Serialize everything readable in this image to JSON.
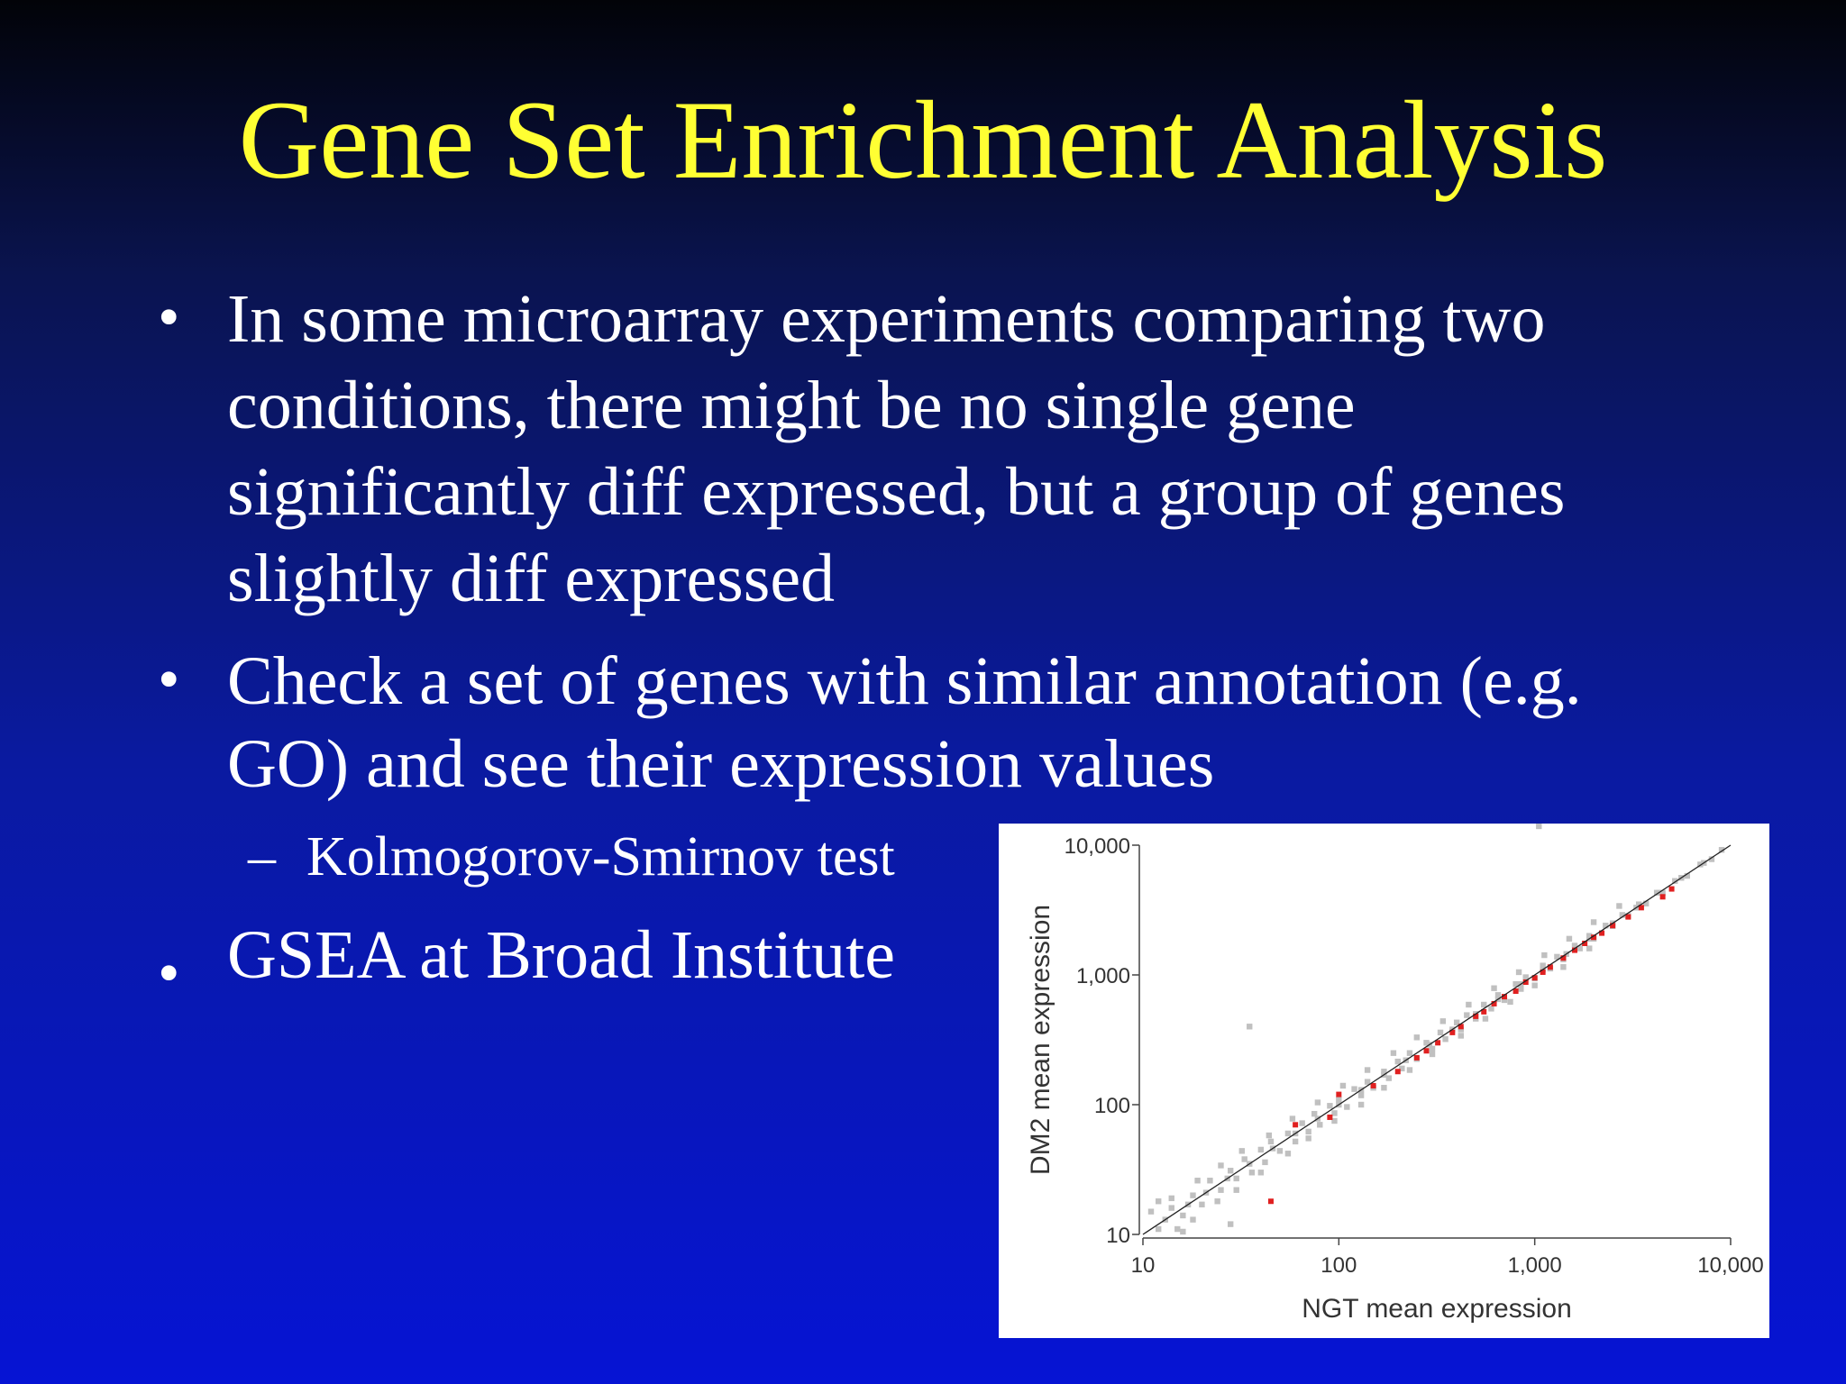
{
  "slide": {
    "title": "Gene Set Enrichment Analysis",
    "bullets": [
      {
        "marker": "•",
        "lines": [
          "In some microarray experiments comparing two",
          "conditions, there might be no single gene",
          "significantly diff expressed,  but a group of genes",
          "slightly diff expressed"
        ]
      },
      {
        "marker": "•",
        "lines": [
          "Check a set of genes with similar annotation (e.g.",
          "GO) and see their expression values"
        ],
        "sub": {
          "marker": "–",
          "text": "Kolmogorov-Smirnov test"
        }
      },
      {
        "marker": "•",
        "lines": [
          "GSEA at Broad Institute"
        ]
      }
    ],
    "colors": {
      "title": "#ffff33",
      "text": "#ffffff",
      "bg_top": "#020308",
      "bg_bottom": "#0614d4"
    }
  },
  "chart_data": {
    "type": "scatter",
    "xlabel": "NGT mean expression",
    "ylabel": "DM2 mean expression",
    "xscale": "log",
    "yscale": "log",
    "xlim": [
      10,
      10000
    ],
    "ylim": [
      10,
      10000
    ],
    "x_ticks": [
      10,
      100,
      1000,
      10000
    ],
    "x_tick_labels": [
      "10",
      "100",
      "1,000",
      "10,000"
    ],
    "y_ticks": [
      10,
      100,
      1000,
      10000
    ],
    "y_tick_labels": [
      "10",
      "100",
      "1,000",
      "10,000"
    ],
    "diagonal": {
      "from": [
        10,
        10
      ],
      "to": [
        10000,
        10000
      ]
    },
    "series": [
      {
        "color": "#c0c0c0",
        "points": [
          [
            12,
            11
          ],
          [
            14,
            16
          ],
          [
            16,
            14
          ],
          [
            18,
            20
          ],
          [
            20,
            17
          ],
          [
            22,
            26
          ],
          [
            25,
            22
          ],
          [
            28,
            31
          ],
          [
            30,
            27
          ],
          [
            33,
            38
          ],
          [
            36,
            30
          ],
          [
            40,
            45
          ],
          [
            42,
            36
          ],
          [
            45,
            52
          ],
          [
            50,
            44
          ],
          [
            55,
            60
          ],
          [
            60,
            52
          ],
          [
            65,
            72
          ],
          [
            70,
            62
          ],
          [
            75,
            85
          ],
          [
            80,
            70
          ],
          [
            90,
            98
          ],
          [
            95,
            86
          ],
          [
            100,
            110
          ],
          [
            110,
            96
          ],
          [
            120,
            132
          ],
          [
            130,
            118
          ],
          [
            140,
            150
          ],
          [
            150,
            135
          ],
          [
            170,
            180
          ],
          [
            180,
            160
          ],
          [
            200,
            215
          ],
          [
            210,
            190
          ],
          [
            230,
            250
          ],
          [
            250,
            225
          ],
          [
            280,
            300
          ],
          [
            300,
            270
          ],
          [
            330,
            360
          ],
          [
            350,
            320
          ],
          [
            400,
            430
          ],
          [
            420,
            380
          ],
          [
            450,
            490
          ],
          [
            500,
            460
          ],
          [
            550,
            590
          ],
          [
            600,
            550
          ],
          [
            650,
            700
          ],
          [
            700,
            640
          ],
          [
            800,
            850
          ],
          [
            850,
            780
          ],
          [
            900,
            960
          ],
          [
            1000,
            940
          ],
          [
            1100,
            1180
          ],
          [
            1200,
            1120
          ],
          [
            1300,
            1380
          ],
          [
            1400,
            1320
          ],
          [
            1600,
            1680
          ],
          [
            1700,
            1600
          ],
          [
            1900,
            2000
          ],
          [
            2000,
            1900
          ],
          [
            2300,
            2400
          ],
          [
            2500,
            2380
          ],
          [
            2800,
            2900
          ],
          [
            3000,
            2850
          ],
          [
            3400,
            3500
          ],
          [
            3700,
            3550
          ],
          [
            4200,
            4300
          ],
          [
            4500,
            4300
          ],
          [
            5200,
            5300
          ],
          [
            6000,
            5800
          ],
          [
            7000,
            7100
          ],
          [
            8000,
            7800
          ],
          [
            9000,
            9200
          ],
          [
            15,
            11
          ],
          [
            18,
            13
          ],
          [
            24,
            18
          ],
          [
            30,
            22
          ],
          [
            40,
            30
          ],
          [
            55,
            42
          ],
          [
            70,
            55
          ],
          [
            95,
            75
          ],
          [
            130,
            100
          ],
          [
            170,
            135
          ],
          [
            230,
            185
          ],
          [
            300,
            245
          ],
          [
            420,
            340
          ],
          [
            560,
            460
          ],
          [
            750,
            620
          ],
          [
            1000,
            830
          ],
          [
            1400,
            1150
          ],
          [
            1900,
            1600
          ],
          [
            11,
            15
          ],
          [
            14,
            19
          ],
          [
            19,
            26
          ],
          [
            25,
            34
          ],
          [
            32,
            44
          ],
          [
            44,
            58
          ],
          [
            58,
            78
          ],
          [
            78,
            104
          ],
          [
            105,
            140
          ],
          [
            140,
            185
          ],
          [
            190,
            250
          ],
          [
            250,
            330
          ],
          [
            340,
            440
          ],
          [
            460,
            590
          ],
          [
            620,
            790
          ],
          [
            830,
            1050
          ],
          [
            1120,
            1420
          ],
          [
            1500,
            1900
          ],
          [
            2000,
            2550
          ],
          [
            2700,
            3400
          ],
          [
            13,
            13
          ],
          [
            17,
            17
          ],
          [
            21,
            21
          ],
          [
            27,
            27
          ],
          [
            35,
            35
          ],
          [
            46,
            46
          ],
          [
            60,
            60
          ],
          [
            78,
            78
          ],
          [
            100,
            100
          ],
          [
            130,
            130
          ],
          [
            170,
            170
          ],
          [
            220,
            220
          ],
          [
            290,
            290
          ],
          [
            380,
            380
          ],
          [
            500,
            500
          ],
          [
            650,
            650
          ],
          [
            850,
            850
          ],
          [
            1100,
            1100
          ],
          [
            1450,
            1450
          ],
          [
            1900,
            1900
          ],
          [
            2500,
            2500
          ],
          [
            3300,
            3300
          ],
          [
            4300,
            4300
          ],
          [
            5600,
            5600
          ],
          [
            7300,
            7300
          ],
          [
            16,
            10.5
          ],
          [
            12,
            18
          ],
          [
            35,
            400
          ],
          [
            28,
            12
          ],
          [
            1050,
            14000
          ]
        ]
      },
      {
        "color": "#e02020",
        "points": [
          [
            45,
            18
          ],
          [
            60,
            70
          ],
          [
            90,
            80
          ],
          [
            100,
            120
          ],
          [
            150,
            140
          ],
          [
            200,
            180
          ],
          [
            250,
            230
          ],
          [
            280,
            260
          ],
          [
            320,
            300
          ],
          [
            380,
            360
          ],
          [
            420,
            400
          ],
          [
            500,
            480
          ],
          [
            550,
            520
          ],
          [
            620,
            600
          ],
          [
            700,
            680
          ],
          [
            800,
            750
          ],
          [
            900,
            880
          ],
          [
            1000,
            950
          ],
          [
            1100,
            1050
          ],
          [
            1200,
            1150
          ],
          [
            1400,
            1350
          ],
          [
            1600,
            1550
          ],
          [
            1800,
            1750
          ],
          [
            2000,
            1950
          ],
          [
            2200,
            2100
          ],
          [
            2500,
            2400
          ],
          [
            3000,
            2800
          ],
          [
            3500,
            3300
          ],
          [
            4500,
            4000
          ],
          [
            5000,
            4600
          ]
        ]
      }
    ]
  }
}
